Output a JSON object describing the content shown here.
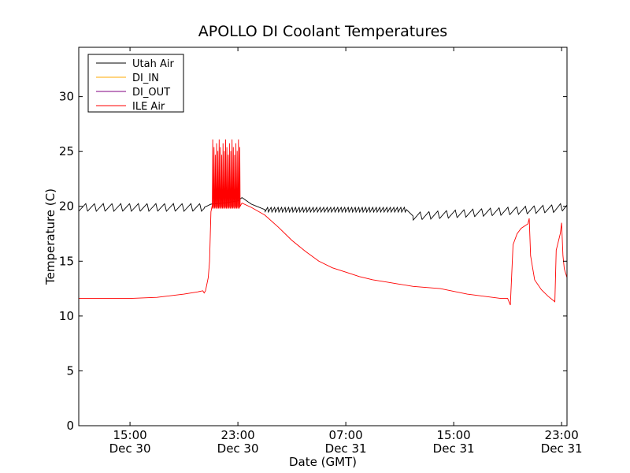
{
  "chart_data": {
    "type": "line",
    "title": "APOLLO DI Coolant Temperatures",
    "xlabel": "Date (GMT)",
    "ylabel": "Temperature (C)",
    "x_unit": "hours",
    "xlim": [
      11.2,
      47.4
    ],
    "ylim": [
      0,
      34.5
    ],
    "x_ticks": [
      {
        "x": 15,
        "label1": "15:00",
        "label2": "Dec 30"
      },
      {
        "x": 23,
        "label1": "23:00",
        "label2": "Dec 30"
      },
      {
        "x": 31,
        "label1": "07:00",
        "label2": "Dec 31"
      },
      {
        "x": 39,
        "label1": "15:00",
        "label2": "Dec 31"
      },
      {
        "x": 47,
        "label1": "23:00",
        "label2": "Dec 31"
      }
    ],
    "y_ticks": [
      0,
      5,
      10,
      15,
      20,
      25,
      30
    ],
    "legend": {
      "position": "top-left"
    },
    "series": [
      {
        "name": "Utah Air",
        "color": "#000000",
        "base": [
          [
            11.2,
            19.9
          ],
          [
            20.5,
            19.9
          ],
          [
            21.0,
            20.2
          ],
          [
            22.0,
            20.3
          ],
          [
            23.0,
            20.5
          ],
          [
            23.3,
            20.8
          ],
          [
            24.0,
            20.2
          ],
          [
            25.0,
            19.7
          ],
          [
            35.5,
            19.7
          ],
          [
            36.0,
            19.1
          ],
          [
            46.5,
            19.8
          ],
          [
            47.4,
            20.0
          ]
        ],
        "osc": [
          {
            "start": 11.2,
            "end": 20.5,
            "period": 0.65,
            "amp": 0.7
          },
          {
            "start": 25.0,
            "end": 35.5,
            "period": 0.26,
            "amp": 0.45
          },
          {
            "start": 36.0,
            "end": 47.4,
            "period": 0.65,
            "amp": 0.7
          }
        ]
      },
      {
        "name": "DI_IN",
        "color": "#ffaa00",
        "points": []
      },
      {
        "name": "DI_OUT",
        "color": "#800080",
        "points": []
      },
      {
        "name": "ILE Air",
        "color": "#ff0000",
        "points": [
          [
            11.2,
            11.6
          ],
          [
            15.0,
            11.6
          ],
          [
            17.0,
            11.7
          ],
          [
            19.0,
            12.0
          ],
          [
            20.0,
            12.2
          ],
          [
            20.4,
            12.3
          ],
          [
            20.5,
            12.1
          ],
          [
            20.6,
            12.3
          ],
          [
            20.8,
            13.5
          ],
          [
            20.9,
            15.0
          ],
          [
            21.0,
            19.5
          ],
          [
            21.1,
            20.1
          ],
          [
            23.3,
            20.3
          ],
          [
            24.0,
            19.9
          ],
          [
            25.0,
            19.2
          ],
          [
            26.0,
            18.1
          ],
          [
            27.0,
            16.9
          ],
          [
            28.0,
            15.9
          ],
          [
            29.0,
            15.0
          ],
          [
            30.0,
            14.4
          ],
          [
            31.0,
            14.0
          ],
          [
            32.0,
            13.6
          ],
          [
            33.0,
            13.3
          ],
          [
            34.0,
            13.1
          ],
          [
            35.0,
            12.9
          ],
          [
            36.0,
            12.7
          ],
          [
            38.0,
            12.5
          ],
          [
            40.0,
            12.0
          ],
          [
            42.5,
            11.6
          ],
          [
            43.0,
            11.6
          ],
          [
            43.2,
            11.0
          ],
          [
            43.4,
            16.5
          ],
          [
            43.7,
            17.5
          ],
          [
            44.0,
            18.0
          ],
          [
            44.5,
            18.4
          ],
          [
            44.6,
            18.9
          ],
          [
            44.7,
            15.5
          ],
          [
            45.0,
            13.3
          ],
          [
            45.5,
            12.4
          ],
          [
            46.0,
            11.8
          ],
          [
            46.4,
            11.4
          ],
          [
            46.5,
            11.3
          ],
          [
            46.6,
            16.0
          ],
          [
            46.9,
            17.5
          ],
          [
            47.0,
            18.5
          ],
          [
            47.1,
            15.5
          ],
          [
            47.2,
            14.3
          ],
          [
            47.4,
            13.5
          ]
        ],
        "spikes": {
          "start": 21.1,
          "end": 23.2,
          "count": 22,
          "low": 19.8,
          "high": 26.1
        }
      }
    ]
  }
}
